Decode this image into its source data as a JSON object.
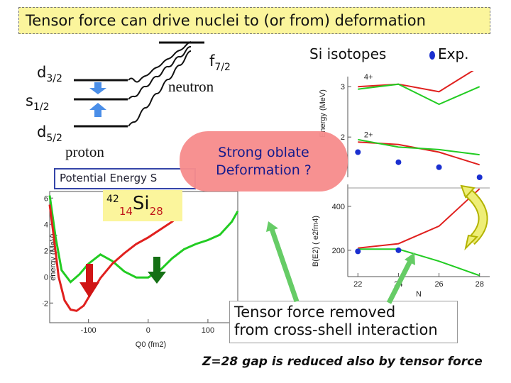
{
  "title": "Tensor force can drive nuclei to (or from) deformation",
  "levels": {
    "d32": {
      "main": "d",
      "sub": "3/2"
    },
    "s12": {
      "main": "s",
      "sub": "1/2"
    },
    "d52": {
      "main": "d",
      "sub": "5/2"
    },
    "f72": {
      "main": "f",
      "sub": "7/2"
    }
  },
  "labels": {
    "proton": "proton",
    "neutron": "neutron",
    "si_isotopes": "Si isotopes",
    "exp": "Exp.",
    "pes": "Potential Energy S",
    "nucleus": {
      "mass": "42",
      "z": "14",
      "symbol": "Si",
      "n": "28"
    },
    "strong_oblate_1": "Strong oblate",
    "strong_oblate_2": "Deformation ?",
    "tensor_removed_1": "Tensor force removed",
    "tensor_removed_2": "from cross-shell interaction",
    "footnote": "Z=28 gap is reduced also by tensor force"
  },
  "colors": {
    "title_bg": "#fbf59c",
    "green": "#22cc22",
    "red": "#e0201e",
    "exp": "#1a2fd0",
    "pink": "#f78d8c",
    "arrow_blue": "#4a8ee8",
    "arrow_green": "#157015",
    "arrow_red": "#d01515"
  },
  "chart_data": [
    {
      "type": "line",
      "xlabel": "Q0 (fm2)",
      "ylabel": "energy (MeV)",
      "xlim": [
        -165,
        150
      ],
      "ylim": [
        -3.5,
        6.5
      ],
      "x_ticks": [
        -100,
        0,
        100
      ],
      "y_ticks": [
        -2,
        0,
        2,
        4,
        6
      ],
      "series": [
        {
          "color": "green",
          "points": [
            [
              -165,
              6.2
            ],
            [
              -155,
              3
            ],
            [
              -145,
              0.5
            ],
            [
              -130,
              -0.4
            ],
            [
              -115,
              0.2
            ],
            [
              -100,
              1.0
            ],
            [
              -80,
              1.7
            ],
            [
              -60,
              1.2
            ],
            [
              -40,
              0.4
            ],
            [
              -20,
              -0.05
            ],
            [
              0,
              -0.05
            ],
            [
              20,
              0.5
            ],
            [
              40,
              1.4
            ],
            [
              60,
              2.1
            ],
            [
              80,
              2.5
            ],
            [
              100,
              2.8
            ],
            [
              120,
              3.2
            ],
            [
              140,
              4.2
            ],
            [
              150,
              5.0
            ]
          ]
        },
        {
          "color": "red",
          "points": [
            [
              -165,
              5.5
            ],
            [
              -158,
              3
            ],
            [
              -150,
              0
            ],
            [
              -140,
              -1.8
            ],
            [
              -130,
              -2.5
            ],
            [
              -120,
              -2.6
            ],
            [
              -108,
              -2.2
            ],
            [
              -95,
              -1.2
            ],
            [
              -80,
              -0.1
            ],
            [
              -60,
              1
            ],
            [
              -40,
              1.8
            ],
            [
              -20,
              2.5
            ],
            [
              0,
              3
            ],
            [
              20,
              3.6
            ],
            [
              40,
              4.2
            ],
            [
              50,
              4.6
            ]
          ]
        }
      ]
    },
    {
      "type": "line",
      "ylabel": "Energy (MeV)",
      "x": [
        22,
        24,
        26,
        28
      ],
      "ylim": [
        1.2,
        3.2
      ],
      "y_ticks": [
        2,
        3
      ],
      "state_labels": [
        "4+",
        "2+"
      ],
      "series": [
        {
          "name": "4+",
          "color": "red",
          "x": [
            22,
            24,
            26,
            28
          ],
          "values": [
            3.0,
            3.05,
            2.9,
            3.4
          ]
        },
        {
          "name": "4+",
          "color": "green",
          "x": [
            22,
            24,
            26,
            28
          ],
          "values": [
            2.95,
            3.05,
            2.65,
            3.0
          ]
        },
        {
          "name": "2+",
          "color": "red",
          "x": [
            22,
            24,
            26,
            28
          ],
          "values": [
            1.9,
            1.85,
            1.7,
            1.45
          ]
        },
        {
          "name": "2+",
          "color": "green",
          "x": [
            22,
            24,
            26,
            28
          ],
          "values": [
            1.95,
            1.8,
            1.75,
            1.65
          ]
        },
        {
          "name": "Exp.",
          "color": "exp",
          "type": "scatter",
          "x": [
            22,
            24,
            26,
            28
          ],
          "values": [
            1.7,
            1.5,
            1.4,
            1.2
          ]
        }
      ]
    },
    {
      "type": "line",
      "xlabel": "N",
      "ylabel": "B(E2) ( e2fm4)",
      "x": [
        22,
        24,
        26,
        28
      ],
      "xlim": [
        21.5,
        28.5
      ],
      "ylim": [
        80,
        500
      ],
      "x_ticks": [
        22,
        24,
        26,
        28
      ],
      "y_ticks": [
        200,
        400
      ],
      "series": [
        {
          "color": "red",
          "x": [
            22,
            24,
            26,
            28
          ],
          "values": [
            210,
            230,
            310,
            480
          ]
        },
        {
          "color": "green",
          "x": [
            22,
            24,
            26,
            28
          ],
          "values": [
            205,
            205,
            150,
            85
          ]
        },
        {
          "name": "Exp.",
          "color": "exp",
          "type": "scatter",
          "x": [
            22,
            24
          ],
          "values": [
            195,
            200
          ]
        }
      ]
    }
  ]
}
